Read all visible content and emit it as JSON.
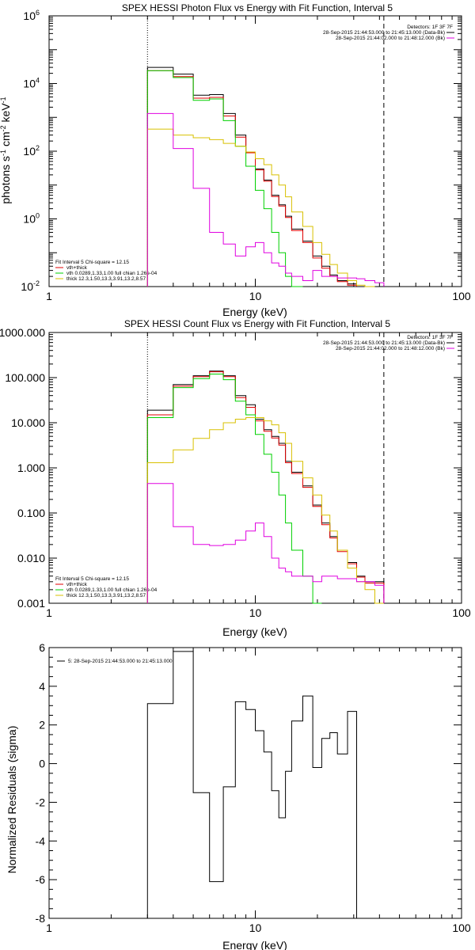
{
  "colors": {
    "total": "#000000",
    "vth_thick": "#e00000",
    "vth": "#00d000",
    "thick": "#d8c000",
    "bk": "#e000e0",
    "axis": "#000000"
  },
  "chart_data": [
    {
      "id": "photon",
      "type": "line",
      "title": "SPEX HESSI Photon Flux vs Energy with Fit Function, Interval 5",
      "xlabel": "Energy (keV)",
      "ylabel": "photons s",
      "ylabel_parts": [
        "photons s",
        "-1",
        " cm",
        "-2",
        " keV",
        "-1"
      ],
      "xscale": "log",
      "yscale": "log",
      "xlim": [
        1,
        100
      ],
      "ylim": [
        0.01,
        1000000
      ],
      "xticks": [
        {
          "v": 1,
          "label": "1"
        },
        {
          "v": 10,
          "label": "10"
        },
        {
          "v": 100,
          "label": "100"
        }
      ],
      "yticks": [
        {
          "v": 0.01,
          "base": "10",
          "exp": "-2"
        },
        {
          "v": 1,
          "base": "10",
          "exp": "0"
        },
        {
          "v": 100,
          "base": "10",
          "exp": "2"
        },
        {
          "v": 10000,
          "base": "10",
          "exp": "4"
        },
        {
          "v": 1000000,
          "base": "10",
          "exp": "6"
        }
      ],
      "vlines": [
        {
          "x": 3,
          "style": "dotted"
        },
        {
          "x": 42,
          "style": "dashed"
        }
      ],
      "bin_edges": [
        3,
        4,
        5,
        6,
        7,
        8,
        9,
        10,
        11,
        12,
        13,
        14,
        15,
        17,
        19,
        21,
        23,
        25,
        28,
        31,
        34,
        38,
        42
      ],
      "legend_top": [
        {
          "text": "Detectors: 1F 3F 7F",
          "color": "#000000"
        },
        {
          "text": "28-Sep-2015 21:44:53.000 to 21:45:13.000 (Data-Bk)",
          "color": "#000000"
        },
        {
          "text": "28-Sep-2015 21:44:02.000 to 21:48:12.000 (Bk)",
          "color": "#e000e0"
        }
      ],
      "legend_bottom": [
        {
          "text": "Fit Interval 5   Chi-square = 12.15",
          "color": "#000000"
        },
        {
          "text": "vth+thick",
          "color": "#e00000"
        },
        {
          "text": "vth 0.0289,1.33,1.00  full chian 1.26e-04",
          "color": "#00d000"
        },
        {
          "text": "thick 12.3,1.50,13.3,3.91,13.2,8.57",
          "color": "#d8c000"
        }
      ],
      "series": [
        {
          "key": "total",
          "color": "#000000",
          "values": [
            30000,
            19000,
            4500,
            4700,
            1300,
            300,
            95,
            30,
            14,
            5,
            2.6,
            1.2,
            0.5,
            0.22,
            0.08,
            0.04,
            0.022,
            0.015,
            0.012
          ]
        },
        {
          "key": "vth_thick",
          "color": "#e00000",
          "values": [
            24000,
            16000,
            3700,
            3900,
            1100,
            260,
            90,
            28,
            13,
            4.6,
            2.4,
            1.1,
            0.45,
            0.2,
            0.07,
            0.035,
            0.02,
            0.014,
            0.011
          ]
        },
        {
          "key": "vth",
          "color": "#00d000",
          "values": [
            24000,
            15000,
            3200,
            3500,
            800,
            140,
            36,
            7,
            2,
            0.4,
            0.1,
            0.02,
            0.007
          ]
        },
        {
          "key": "thick",
          "color": "#d8c000",
          "values": [
            450,
            300,
            250,
            220,
            170,
            140,
            95,
            60,
            40,
            20,
            10,
            4.5,
            1.6,
            0.6,
            0.2,
            0.09,
            0.045,
            0.025,
            0.015,
            0.011,
            0.008
          ]
        },
        {
          "key": "bk",
          "color": "#e000e0",
          "values": [
            1300,
            120,
            8,
            0.4,
            0.18,
            0.08,
            0.15,
            0.2,
            0.1,
            0.05,
            0.04,
            0.025,
            0.02,
            0.015,
            0.03,
            0.02,
            0.02,
            0.018,
            0.018,
            0.017,
            0.015,
            0.013
          ]
        }
      ]
    },
    {
      "id": "count",
      "type": "line",
      "title": "SPEX HESSI Count Flux vs Energy with Fit Function, Interval 5",
      "xlabel": "Energy (keV)",
      "ylabel": "",
      "xscale": "log",
      "yscale": "log",
      "xlim": [
        1,
        100
      ],
      "ylim": [
        0.001,
        1000
      ],
      "xticks": [
        {
          "v": 1,
          "label": "1"
        },
        {
          "v": 10,
          "label": "10"
        },
        {
          "v": 100,
          "label": "100"
        }
      ],
      "yticks": [
        {
          "v": 0.001,
          "label": "0.001"
        },
        {
          "v": 0.01,
          "label": "0.010"
        },
        {
          "v": 0.1,
          "label": "0.100"
        },
        {
          "v": 1,
          "label": "1.000"
        },
        {
          "v": 10,
          "label": "10.000"
        },
        {
          "v": 100,
          "label": "100.000"
        },
        {
          "v": 1000,
          "label": "1000.000"
        }
      ],
      "vlines": [
        {
          "x": 3,
          "style": "dotted"
        },
        {
          "x": 42,
          "style": "dashed"
        }
      ],
      "bin_edges": [
        3,
        4,
        5,
        6,
        7,
        8,
        9,
        10,
        11,
        12,
        13,
        14,
        15,
        17,
        19,
        21,
        23,
        25,
        28,
        31,
        34,
        38,
        42
      ],
      "legend_top": [
        {
          "text": "Detectors: 1F 3F 7F",
          "color": "#000000"
        },
        {
          "text": "28-Sep-2015 21:44:53.000 to 21:45:13.000 (Data-Bk)",
          "color": "#000000"
        },
        {
          "text": "28-Sep-2015 21:44:02.000 to 21:48:12.000 (Bk)",
          "color": "#e000e0"
        }
      ],
      "legend_bottom": [
        {
          "text": "Fit Interval 5   Chi-square = 12.15",
          "color": "#000000"
        },
        {
          "text": "vth+thick",
          "color": "#e00000"
        },
        {
          "text": "vth 0.0289,1.33,1.00  full chian 1.26e-04",
          "color": "#00d000"
        },
        {
          "text": "thick 12.3,1.50,13.3,3.91,13.2,8.57",
          "color": "#d8c000"
        }
      ],
      "series": [
        {
          "key": "total",
          "color": "#000000",
          "values": [
            19,
            70,
            110,
            140,
            110,
            40,
            25,
            12,
            7,
            5,
            3.5,
            1.4,
            0.8,
            0.4,
            0.15,
            0.06,
            0.03,
            0.015,
            0.008,
            0.004,
            0.003,
            0.003
          ]
        },
        {
          "key": "vth_thick",
          "color": "#e00000",
          "values": [
            15,
            65,
            105,
            135,
            105,
            36,
            22,
            11,
            6.5,
            4.6,
            3.2,
            1.3,
            0.75,
            0.37,
            0.14,
            0.055,
            0.028,
            0.014,
            0.0075,
            0.0038,
            0.0028,
            0.0028
          ]
        },
        {
          "key": "vth",
          "color": "#00d000",
          "values": [
            13,
            60,
            95,
            120,
            90,
            30,
            15,
            5.5,
            2,
            0.8,
            0.25,
            0.06,
            0.015,
            0.004,
            0.001
          ]
        },
        {
          "key": "thick",
          "color": "#d8c000",
          "values": [
            1.3,
            2.5,
            4.5,
            7,
            10,
            12,
            13,
            13,
            11,
            9,
            6,
            3.5,
            1.4,
            0.6,
            0.25,
            0.09,
            0.04,
            0.015,
            0.006,
            0.003,
            0.002,
            0.001
          ]
        },
        {
          "key": "bk",
          "color": "#e000e0",
          "values": [
            0.45,
            0.05,
            0.02,
            0.019,
            0.02,
            0.025,
            0.04,
            0.06,
            0.03,
            0.01,
            0.006,
            0.005,
            0.004,
            0.004,
            0.003,
            0.004,
            0.004,
            0.0035,
            0.0035,
            0.003,
            0.003,
            0.0025
          ]
        }
      ]
    },
    {
      "id": "resid",
      "type": "line",
      "title": "",
      "xlabel": "Energy (keV)",
      "ylabel": "Normalized Residuals (sigma)",
      "xscale": "log",
      "yscale": "linear",
      "xlim": [
        1,
        100
      ],
      "ylim": [
        -8,
        6
      ],
      "xticks": [
        {
          "v": 1,
          "label": "1"
        },
        {
          "v": 10,
          "label": "10"
        },
        {
          "v": 100,
          "label": "100"
        }
      ],
      "yticks": [
        {
          "v": -8,
          "label": "-8"
        },
        {
          "v": -6,
          "label": "-6"
        },
        {
          "v": -4,
          "label": "-4"
        },
        {
          "v": -2,
          "label": "-2"
        },
        {
          "v": 0,
          "label": "0"
        },
        {
          "v": 2,
          "label": "2"
        },
        {
          "v": 4,
          "label": "4"
        },
        {
          "v": 6,
          "label": "6"
        }
      ],
      "bin_edges": [
        3,
        4,
        5,
        6,
        7,
        8,
        9,
        10,
        11,
        12,
        13,
        14,
        15,
        17,
        19,
        21,
        23,
        25,
        28,
        31,
        34,
        38,
        42
      ],
      "legend_top_left": [
        {
          "text": "5: 28-Sep-2015 21:44:53.000 to 21:45:13.000",
          "color": "#000000"
        }
      ],
      "series": [
        {
          "key": "residuals",
          "color": "#000000",
          "values": [
            3.1,
            5.8,
            -1.5,
            -6.1,
            -1.2,
            3.2,
            2.8,
            1.7,
            0.6,
            -1.4,
            -2.8,
            -0.4,
            2.2,
            3.5,
            -0.2,
            1.3,
            1.6,
            0.5,
            2.7
          ]
        }
      ]
    }
  ]
}
